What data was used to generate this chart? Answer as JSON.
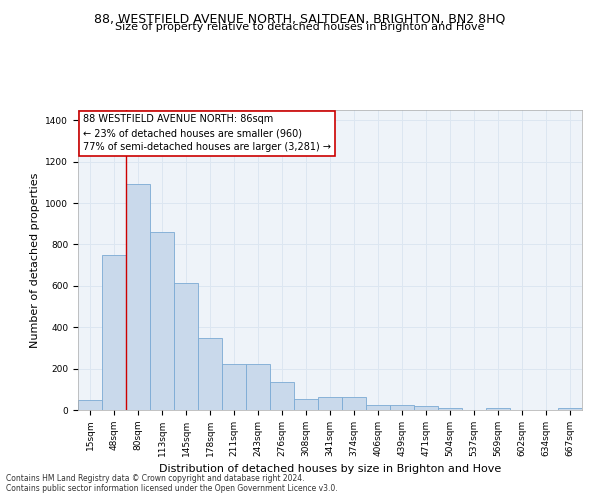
{
  "title": "88, WESTFIELD AVENUE NORTH, SALTDEAN, BRIGHTON, BN2 8HQ",
  "subtitle": "Size of property relative to detached houses in Brighton and Hove",
  "xlabel": "Distribution of detached houses by size in Brighton and Hove",
  "ylabel": "Number of detached properties",
  "footer1": "Contains HM Land Registry data © Crown copyright and database right 2024.",
  "footer2": "Contains public sector information licensed under the Open Government Licence v3.0.",
  "categories": [
    "15sqm",
    "48sqm",
    "80sqm",
    "113sqm",
    "145sqm",
    "178sqm",
    "211sqm",
    "243sqm",
    "276sqm",
    "308sqm",
    "341sqm",
    "374sqm",
    "406sqm",
    "439sqm",
    "471sqm",
    "504sqm",
    "537sqm",
    "569sqm",
    "602sqm",
    "634sqm",
    "667sqm"
  ],
  "values": [
    50,
    750,
    1090,
    860,
    615,
    350,
    220,
    220,
    135,
    55,
    65,
    65,
    25,
    25,
    20,
    12,
    0,
    8,
    0,
    0,
    10
  ],
  "bar_color": "#c9d9eb",
  "bar_edge_color": "#7baad4",
  "grid_color": "#dce6f1",
  "background_color": "#eef3f9",
  "annotation_box_facecolor": "#ffffff",
  "annotation_line_color": "#cc0000",
  "annotation_text_line1": "88 WESTFIELD AVENUE NORTH: 86sqm",
  "annotation_text_line2": "← 23% of detached houses are smaller (960)",
  "annotation_text_line3": "77% of semi-detached houses are larger (3,281) →",
  "property_line_x": 1.5,
  "ylim": [
    0,
    1450
  ],
  "yticks": [
    0,
    200,
    400,
    600,
    800,
    1000,
    1200,
    1400
  ],
  "title_fontsize": 9,
  "subtitle_fontsize": 8,
  "tick_fontsize": 6.5,
  "ylabel_fontsize": 8,
  "xlabel_fontsize": 8,
  "annotation_fontsize": 7,
  "footer_fontsize": 5.5
}
